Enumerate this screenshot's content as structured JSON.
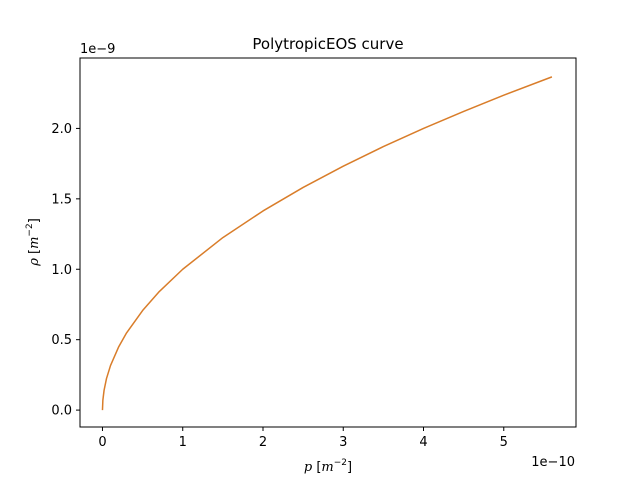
{
  "chart_data": {
    "type": "line",
    "title": "PolytropicEOS curve",
    "xlabel": "p [m^-2]",
    "ylabel": "ρ [m^-2]",
    "x_offset_text": "1e−10",
    "y_offset_text": "1e−9",
    "xlim": [
      -2.8e-11,
      5.9e-10
    ],
    "ylim": [
      -1.2e-10,
      2.5e-09
    ],
    "x_ticks": [
      0,
      1e-10,
      2e-10,
      3e-10,
      4e-10,
      5e-10
    ],
    "x_tick_labels": [
      "0",
      "1",
      "2",
      "3",
      "4",
      "5"
    ],
    "y_ticks": [
      0,
      5e-10,
      1e-09,
      1.5e-09,
      2e-09
    ],
    "y_tick_labels": [
      "0.0",
      "0.5",
      "1.0",
      "1.5",
      "2.0"
    ],
    "grid": false,
    "series": [
      {
        "color": "#d97d2a",
        "x": [
          0,
          5e-13,
          2e-12,
          5e-12,
          1e-11,
          2e-11,
          3e-11,
          5e-11,
          7e-11,
          1e-10,
          1.5e-10,
          2e-10,
          2.5e-10,
          3e-10,
          3.5e-10,
          4e-10,
          4.5e-10,
          5e-10,
          5.6e-10
        ],
        "y": [
          0,
          7.1e-11,
          1.41e-10,
          2.24e-10,
          3.16e-10,
          4.47e-10,
          5.48e-10,
          7.07e-10,
          8.37e-10,
          1e-09,
          1.225e-09,
          1.414e-09,
          1.581e-09,
          1.732e-09,
          1.871e-09,
          2e-09,
          2.121e-09,
          2.236e-09,
          2.366e-09
        ]
      }
    ]
  }
}
